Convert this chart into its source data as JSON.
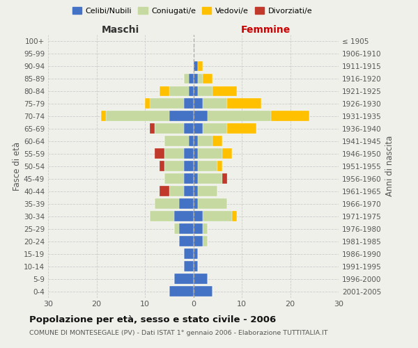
{
  "age_groups": [
    "0-4",
    "5-9",
    "10-14",
    "15-19",
    "20-24",
    "25-29",
    "30-34",
    "35-39",
    "40-44",
    "45-49",
    "50-54",
    "55-59",
    "60-64",
    "65-69",
    "70-74",
    "75-79",
    "80-84",
    "85-89",
    "90-94",
    "95-99",
    "100+"
  ],
  "birth_years": [
    "2001-2005",
    "1996-2000",
    "1991-1995",
    "1986-1990",
    "1981-1985",
    "1976-1980",
    "1971-1975",
    "1966-1970",
    "1961-1965",
    "1956-1960",
    "1951-1955",
    "1946-1950",
    "1941-1945",
    "1936-1940",
    "1931-1935",
    "1926-1930",
    "1921-1925",
    "1916-1920",
    "1911-1915",
    "1906-1910",
    "≤ 1905"
  ],
  "maschi": {
    "celibi": [
      5,
      4,
      2,
      2,
      3,
      3,
      4,
      3,
      2,
      2,
      2,
      2,
      1,
      2,
      5,
      2,
      1,
      1,
      0,
      0,
      0
    ],
    "coniugati": [
      0,
      0,
      0,
      0,
      0,
      1,
      5,
      5,
      3,
      4,
      4,
      4,
      5,
      6,
      13,
      7,
      4,
      1,
      0,
      0,
      0
    ],
    "vedovi": [
      0,
      0,
      0,
      0,
      0,
      0,
      0,
      0,
      0,
      0,
      0,
      0,
      0,
      0,
      1,
      1,
      2,
      0,
      0,
      0,
      0
    ],
    "divorziati": [
      0,
      0,
      0,
      0,
      0,
      0,
      0,
      0,
      2,
      0,
      1,
      2,
      0,
      1,
      0,
      0,
      0,
      0,
      0,
      0,
      0
    ]
  },
  "femmine": {
    "nubili": [
      4,
      3,
      1,
      1,
      2,
      2,
      2,
      1,
      1,
      1,
      1,
      1,
      1,
      2,
      3,
      2,
      1,
      1,
      1,
      0,
      0
    ],
    "coniugate": [
      0,
      0,
      0,
      0,
      1,
      1,
      6,
      6,
      4,
      5,
      4,
      5,
      3,
      5,
      13,
      5,
      3,
      1,
      0,
      0,
      0
    ],
    "vedove": [
      0,
      0,
      0,
      0,
      0,
      0,
      1,
      0,
      0,
      0,
      1,
      2,
      2,
      6,
      8,
      7,
      5,
      2,
      1,
      0,
      0
    ],
    "divorziate": [
      0,
      0,
      0,
      0,
      0,
      0,
      0,
      0,
      0,
      1,
      0,
      0,
      0,
      0,
      0,
      0,
      0,
      0,
      0,
      0,
      0
    ]
  },
  "colors": {
    "celibi_nubili": "#4472c4",
    "coniugati": "#c5d9a0",
    "vedovi": "#ffc000",
    "divorziati": "#c0392b"
  },
  "xlim": 30,
  "title": "Popolazione per età, sesso e stato civile - 2006",
  "subtitle": "COMUNE DI MONTESEGALE (PV) - Dati ISTAT 1° gennaio 2006 - Elaborazione TUTTITALIA.IT",
  "ylabel_left": "Fasce di età",
  "ylabel_right": "Anni di nascita",
  "xlabel_left": "Maschi",
  "xlabel_right": "Femmine",
  "bg_color": "#f0f0eb"
}
